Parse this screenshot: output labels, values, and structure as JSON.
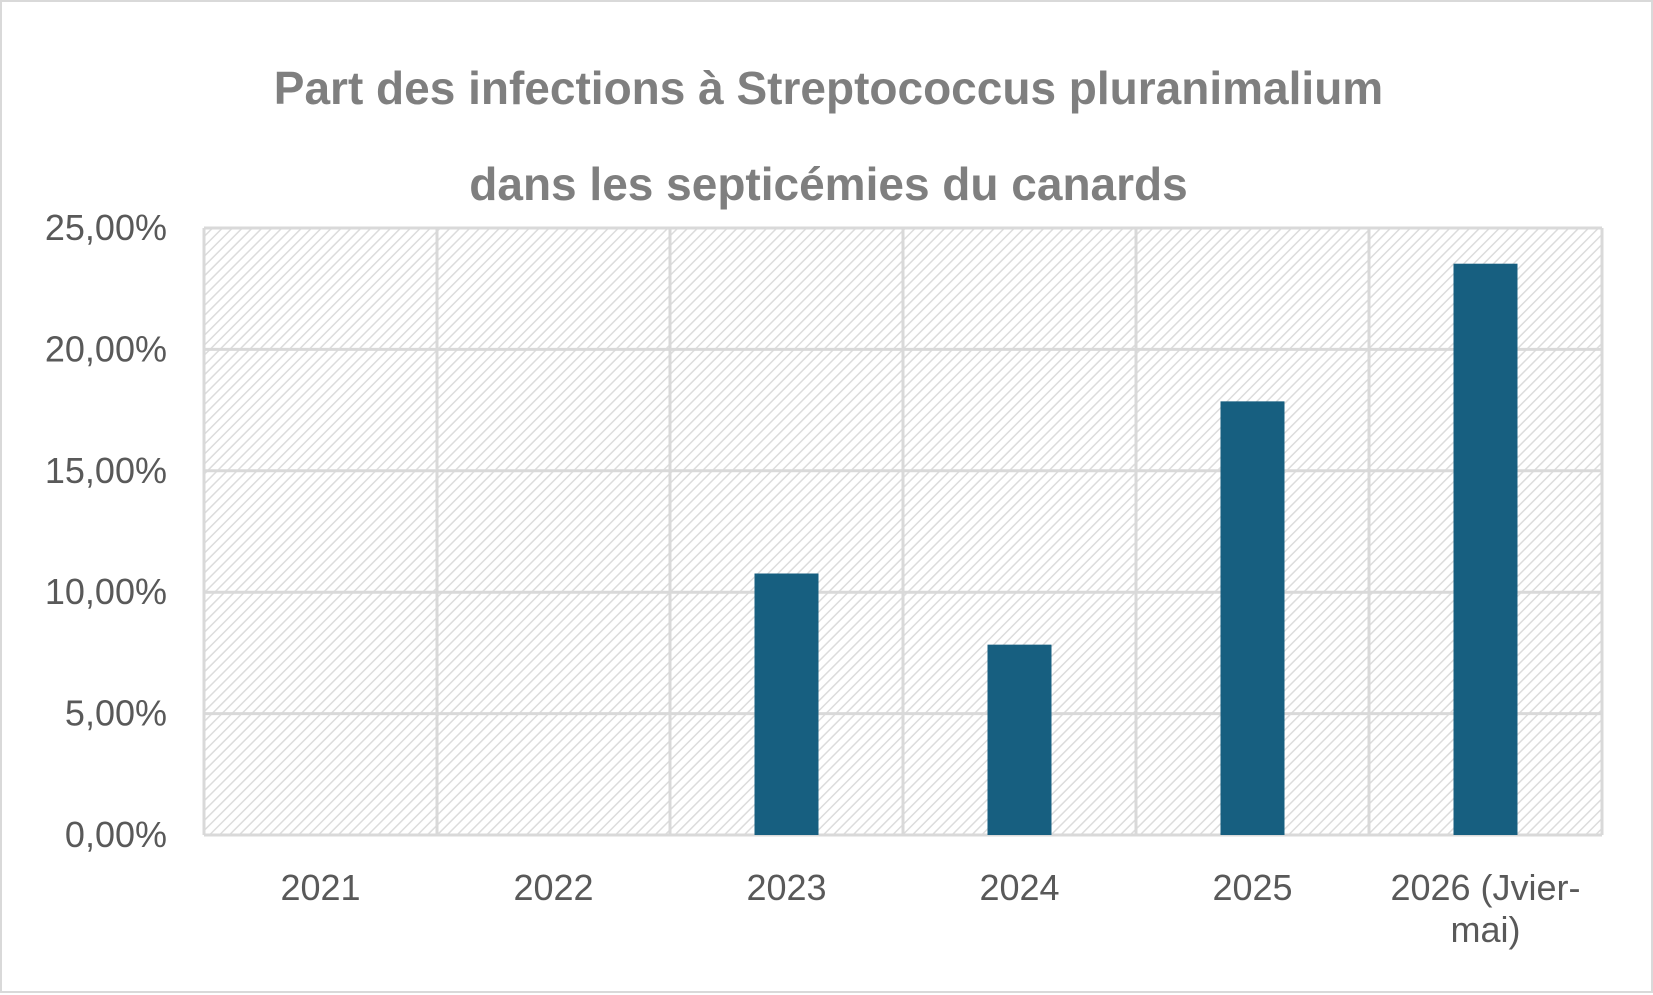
{
  "chart_data": {
    "type": "bar",
    "title_lines": [
      "Part des infections à Streptococcus pluranimalium",
      "dans les septicémies du canards"
    ],
    "xlabel": "",
    "ylabel": "",
    "categories": [
      "2021",
      "2022",
      "2023",
      "2024",
      "2025",
      "2026 (Jvier-mai)"
    ],
    "category_label_lines": [
      [
        "2021"
      ],
      [
        "2022"
      ],
      [
        "2023"
      ],
      [
        "2024"
      ],
      [
        "2025"
      ],
      [
        "2026 (Jvier-",
        "mai)"
      ]
    ],
    "values": [
      0,
      0,
      10.77,
      7.84,
      17.86,
      23.53
    ],
    "y_ticks": [
      "0,00%",
      "5,00%",
      "10,00%",
      "15,00%",
      "20,00%",
      "25,00%"
    ],
    "y_tick_values": [
      0,
      5,
      10,
      15,
      20,
      25
    ],
    "ylim": [
      0,
      25
    ],
    "y_unit": "%",
    "grid": true,
    "legend": "none",
    "bar_color": "#175f80",
    "grid_color": "#d9d9d9",
    "plot_pattern": "light-diagonal-hatch"
  }
}
